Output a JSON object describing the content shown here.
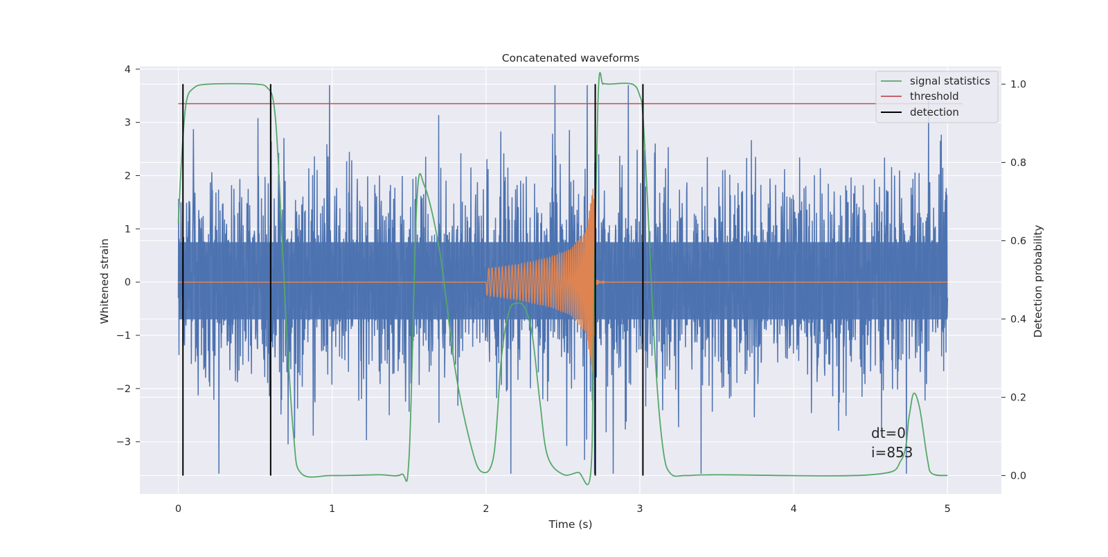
{
  "chart_data": {
    "type": "line",
    "title": "Concatenated waveforms",
    "xlabel": "Time (s)",
    "ylabel": "Whitened strain",
    "y2label": "Detection probability",
    "xlim": [
      -0.25,
      5.35
    ],
    "ylim": [
      -3.98,
      4.05
    ],
    "y2lim": [
      -0.047,
      1.045
    ],
    "x_ticks": [
      0,
      1,
      2,
      3,
      4,
      5
    ],
    "y_ticks": [
      -3,
      -2,
      -1,
      0,
      1,
      2,
      3,
      4
    ],
    "y2_ticks": [
      0.0,
      0.2,
      0.4,
      0.6,
      0.8,
      1.0
    ],
    "y2_tick_labels": [
      "0.0",
      "0.2",
      "0.4",
      "0.6",
      "0.8",
      "1.0"
    ],
    "grid": true,
    "legend_position": "top-right",
    "colors": {
      "strain": "#4c72b0",
      "template": "#dd8452",
      "signal_statistics": "#55a868",
      "threshold": "#c44e52",
      "detection": "#000000",
      "background": "#eaeaf2",
      "grid": "#ffffff"
    },
    "series": [
      {
        "name": "",
        "kind": "noise",
        "axis": "left",
        "color": "#4c72b0",
        "x_range": [
          0,
          5
        ],
        "amplitude_envelope": [
          -3.6,
          3.7
        ],
        "dense_band": [
          -0.7,
          0.75
        ]
      },
      {
        "name": "",
        "kind": "chirp",
        "axis": "left",
        "color": "#dd8452",
        "x": [
          0,
          2.0,
          2.0,
          2.2,
          2.4,
          2.55,
          2.65,
          2.7,
          2.71,
          2.75,
          5
        ],
        "envelope": [
          0,
          0,
          0.25,
          0.33,
          0.45,
          0.62,
          0.95,
          1.85,
          0.05,
          0,
          0
        ]
      },
      {
        "name": "signal statistics",
        "axis": "right",
        "color": "#55a868",
        "x": [
          0,
          0.02,
          0.05,
          0.1,
          0.2,
          0.5,
          0.58,
          0.62,
          0.65,
          0.7,
          0.75,
          0.8,
          1.0,
          1.3,
          1.45,
          1.5,
          1.55,
          1.6,
          1.7,
          1.8,
          1.9,
          1.97,
          2.05,
          2.1,
          2.15,
          2.2,
          2.25,
          2.3,
          2.35,
          2.4,
          2.5,
          2.6,
          2.68,
          2.7,
          2.73,
          2.76,
          2.8,
          2.95,
          3.0,
          3.02,
          3.05,
          3.1,
          3.15,
          3.2,
          3.3,
          3.5,
          4.5,
          4.7,
          4.75,
          4.78,
          4.82,
          4.87,
          4.9,
          5.0
        ],
        "values": [
          0.645,
          0.8,
          0.95,
          0.99,
          1.0,
          1.0,
          0.99,
          0.95,
          0.8,
          0.4,
          0.1,
          0.005,
          0.0,
          0.002,
          0.003,
          0.05,
          0.7,
          0.74,
          0.57,
          0.27,
          0.08,
          0.01,
          0.05,
          0.3,
          0.42,
          0.44,
          0.43,
          0.36,
          0.19,
          0.05,
          0.003,
          0.008,
          0.005,
          0.4,
          0.98,
          1.0,
          1.0,
          1.0,
          0.97,
          0.92,
          0.7,
          0.3,
          0.07,
          0.005,
          0.0,
          0.002,
          0.002,
          0.04,
          0.15,
          0.21,
          0.17,
          0.04,
          0.005,
          0.0
        ]
      },
      {
        "name": "threshold",
        "axis": "right",
        "color": "#c44e52",
        "x": [
          0,
          5.1
        ],
        "values": [
          0.95,
          0.95
        ]
      }
    ],
    "detections": {
      "name": "detection",
      "color": "#000000",
      "x": [
        0.03,
        0.6,
        2.71,
        3.02
      ],
      "y_range": [
        0.0,
        1.0
      ]
    },
    "annotations": [
      "dt=0",
      "i=853"
    ]
  }
}
